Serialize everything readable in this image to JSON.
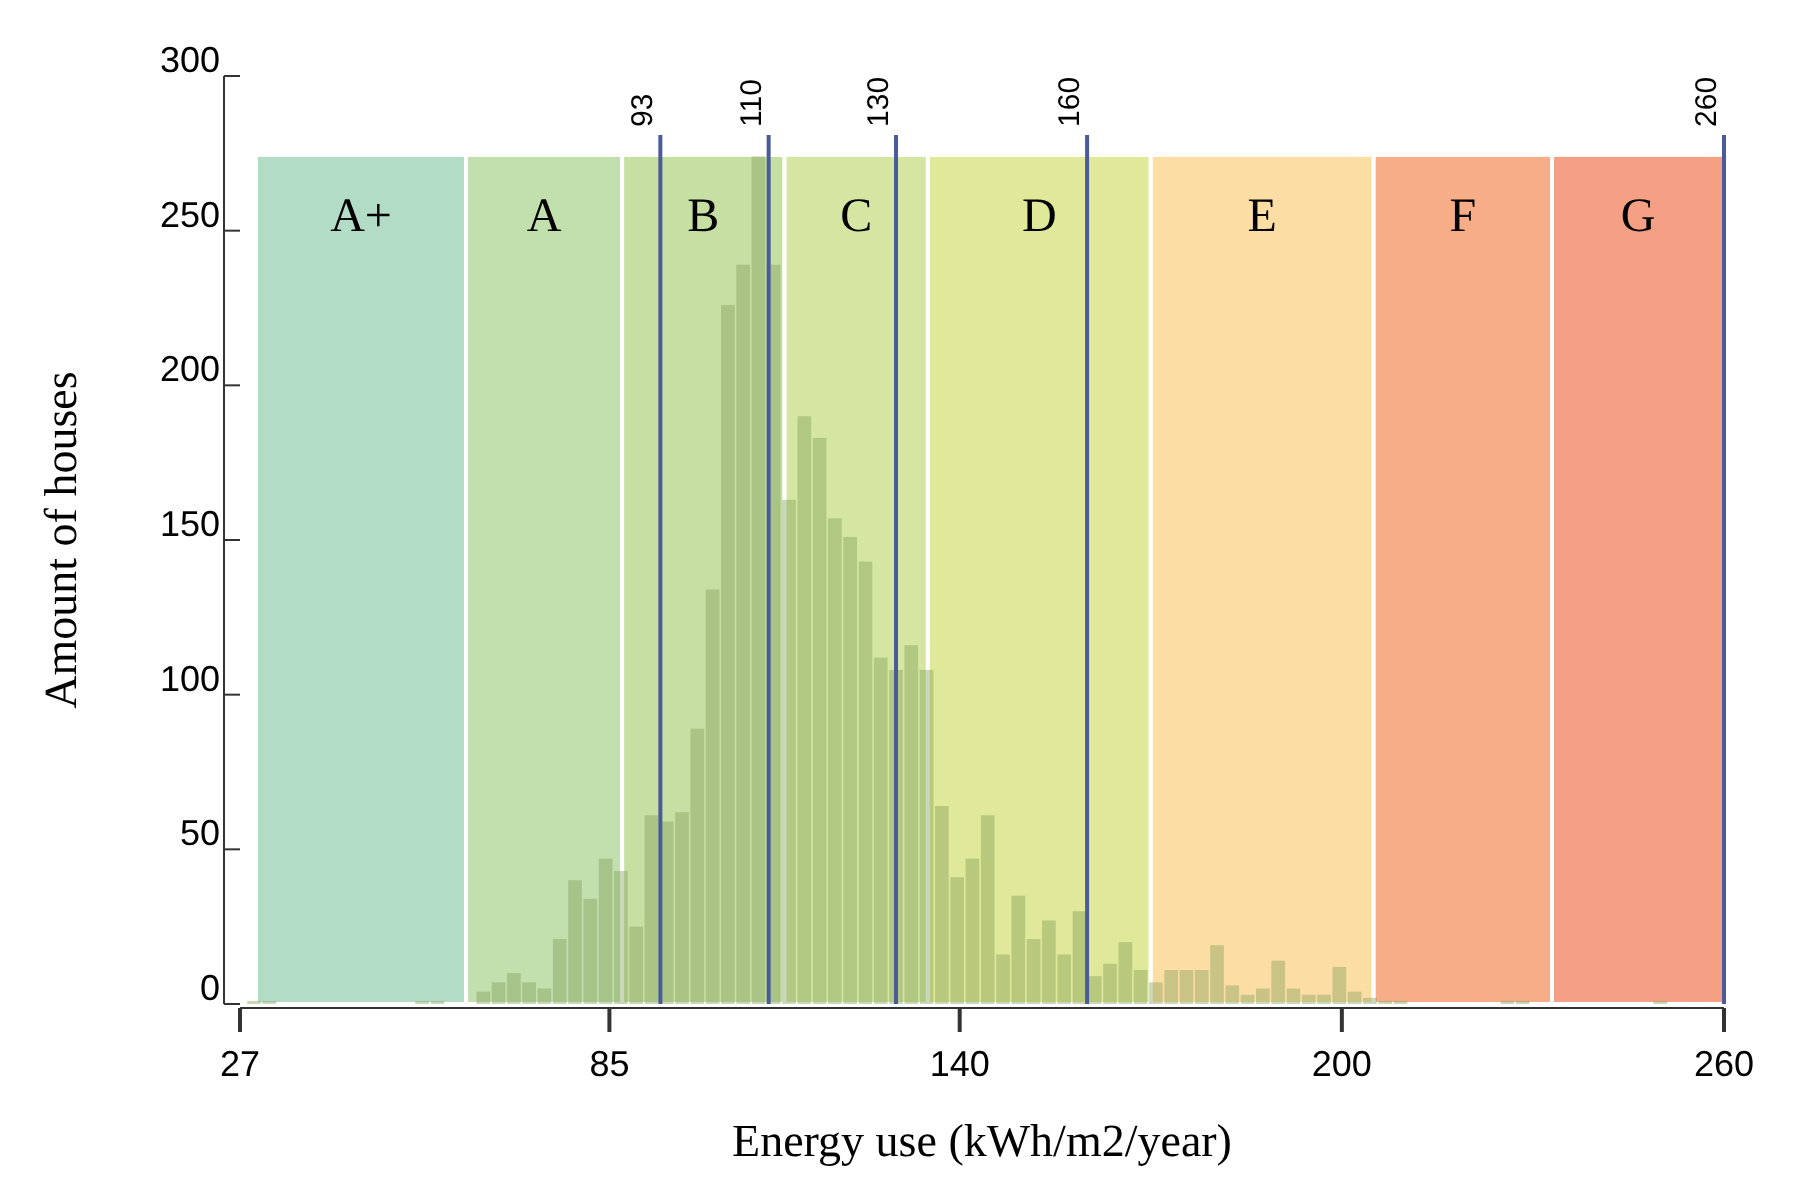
{
  "chart_data": {
    "type": "histogram",
    "xlabel": "Energy use (kWh/m2/year)",
    "ylabel": "Amount of houses",
    "bins": [
      28,
      30.4,
      32.8,
      35.2,
      37.6,
      40,
      42.4,
      44.8,
      47.2,
      49.6,
      52,
      54.4,
      56.8,
      59.2,
      61.6,
      64,
      66.4,
      68.8,
      71.2,
      73.6,
      76,
      78.4,
      80.8,
      83.2,
      85.6,
      88,
      90.4,
      92.8,
      95.2,
      97.6,
      100,
      102.4,
      104.8,
      107.2,
      109.6,
      112,
      114.4,
      116.8,
      119.2,
      121.6,
      124,
      126.4,
      128.8,
      131.2,
      133.6,
      136,
      138.4,
      140.8,
      143.2,
      145.6,
      148,
      150.4,
      152.8,
      155.2,
      157.6,
      160,
      162.4,
      164.8,
      167.2,
      169.6,
      172,
      174.4,
      176.8,
      179.2,
      181.6,
      184,
      186.4,
      188.8,
      191.2,
      193.6,
      196,
      198.4,
      200.8,
      203.2,
      205.6,
      208,
      210.4,
      212.8,
      215.2,
      217.6,
      220,
      222.4,
      224.8,
      227.2,
      229.6,
      232,
      234.4,
      236.8,
      239.2,
      241.6,
      244,
      246.4,
      248.8,
      251.2,
      253.6,
      256,
      258.4
    ],
    "values": [
      1,
      1,
      0,
      0,
      0,
      0,
      0,
      0,
      0,
      0,
      0,
      1,
      1,
      0,
      0,
      4,
      7,
      10,
      7,
      5,
      21,
      40,
      34,
      47,
      43,
      25,
      61,
      59,
      62,
      89,
      134,
      226,
      239,
      274,
      239,
      163,
      190,
      183,
      157,
      151,
      143,
      112,
      108,
      116,
      108,
      64,
      41,
      47,
      61,
      16,
      35,
      21,
      27,
      16,
      30,
      9,
      13,
      20,
      11,
      7,
      11,
      11,
      11,
      19,
      6,
      3,
      5,
      14,
      5,
      3,
      3,
      12,
      4,
      2,
      1,
      1,
      0,
      0,
      0,
      0,
      0,
      0,
      1,
      1,
      0,
      0,
      0,
      0,
      0,
      0,
      0,
      0,
      1,
      0,
      0,
      0
    ],
    "color": "#7d9a55",
    "xlim": [
      27,
      260
    ],
    "xticks": [
      27,
      85,
      140,
      200,
      260
    ],
    "ylim": [
      0,
      300
    ],
    "yticks": [
      0,
      50,
      100,
      150,
      200,
      250,
      300
    ],
    "bands": [
      {
        "axis": "x",
        "from": 29.5,
        "to": 62.5,
        "label": "A+",
        "color": "#b3dcc6"
      },
      {
        "axis": "x",
        "from": 62.5,
        "to": 87,
        "label": "A",
        "color": "#c2dfae"
      },
      {
        "axis": "x",
        "from": 87,
        "to": 112.5,
        "label": "B",
        "color": "#c6e0a4"
      },
      {
        "axis": "x",
        "from": 112.5,
        "to": 135,
        "label": "C",
        "color": "#d4e6a2"
      },
      {
        "axis": "x",
        "from": 135,
        "to": 170,
        "label": "D",
        "color": "#e0e899"
      },
      {
        "axis": "x",
        "from": 170,
        "to": 205,
        "label": "E",
        "color": "#fcdea5"
      },
      {
        "axis": "x",
        "from": 205,
        "to": 233,
        "label": "F",
        "color": "#f7ad88"
      },
      {
        "axis": "x",
        "from": 233,
        "to": 260,
        "label": "G",
        "color": "#f5a085"
      }
    ],
    "ref_lines": [
      {
        "axis": "x",
        "value": 93,
        "label": "93",
        "color": "#4a5a9a"
      },
      {
        "axis": "x",
        "value": 110,
        "label": "110",
        "color": "#4a5a9a"
      },
      {
        "axis": "x",
        "value": 130,
        "label": "130",
        "color": "#4a5a9a"
      },
      {
        "axis": "x",
        "value": 160,
        "label": "160",
        "color": "#4a5a9a"
      },
      {
        "axis": "x",
        "value": 260,
        "label": "260",
        "color": "#4a5a9a"
      }
    ]
  }
}
